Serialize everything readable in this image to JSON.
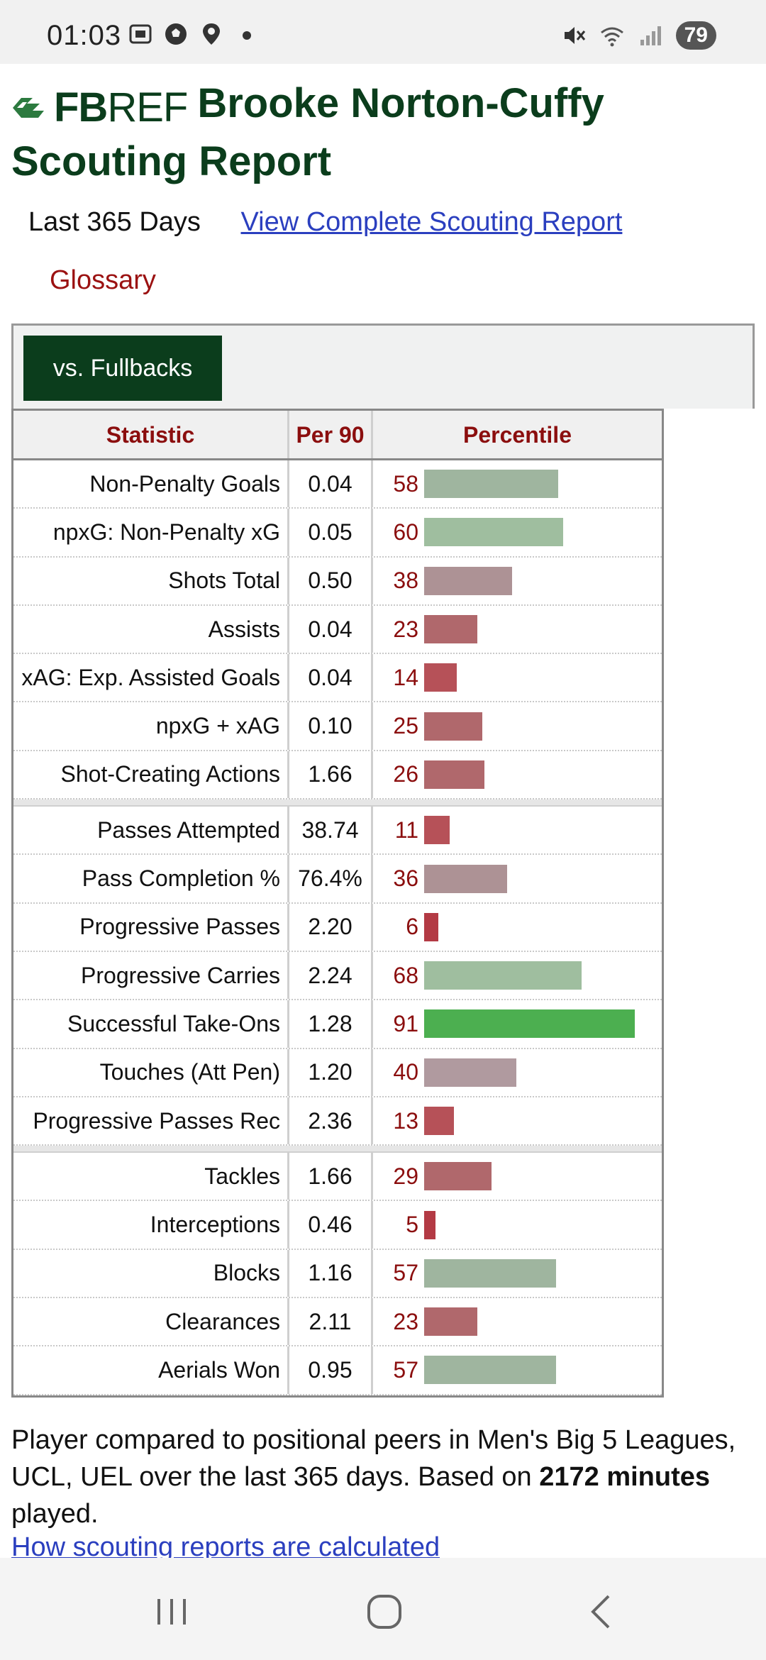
{
  "status_bar": {
    "time": "01:03",
    "battery": "79",
    "left_icons": [
      "screenshot-icon",
      "soccer-ball-icon",
      "location-icon",
      "dot-icon"
    ],
    "right_icons": [
      "mute-icon",
      "wifi-icon",
      "signal-icon"
    ]
  },
  "header": {
    "logo_fb": "FB",
    "logo_ref": "REF",
    "title_line1": "Brooke Norton-Cuffy",
    "title_line2": "Scouting Report"
  },
  "links": {
    "period": "Last 365 Days",
    "view_complete": "View Complete Scouting Report",
    "glossary": "Glossary"
  },
  "filter": {
    "button": "vs. Fullbacks"
  },
  "table": {
    "headers": {
      "statistic": "Statistic",
      "per90": "Per 90",
      "percentile": "Percentile"
    },
    "groups": [
      [
        {
          "stat": "Non-Penalty Goals",
          "per90": "0.04",
          "pct": 58
        },
        {
          "stat": "npxG: Non-Penalty xG",
          "per90": "0.05",
          "pct": 60
        },
        {
          "stat": "Shots Total",
          "per90": "0.50",
          "pct": 38
        },
        {
          "stat": "Assists",
          "per90": "0.04",
          "pct": 23
        },
        {
          "stat": "xAG: Exp. Assisted Goals",
          "per90": "0.04",
          "pct": 14
        },
        {
          "stat": "npxG + xAG",
          "per90": "0.10",
          "pct": 25
        },
        {
          "stat": "Shot-Creating Actions",
          "per90": "1.66",
          "pct": 26
        }
      ],
      [
        {
          "stat": "Passes Attempted",
          "per90": "38.74",
          "pct": 11
        },
        {
          "stat": "Pass Completion %",
          "per90": "76.4%",
          "pct": 36
        },
        {
          "stat": "Progressive Passes",
          "per90": "2.20",
          "pct": 6
        },
        {
          "stat": "Progressive Carries",
          "per90": "2.24",
          "pct": 68
        },
        {
          "stat": "Successful Take-Ons",
          "per90": "1.28",
          "pct": 91
        },
        {
          "stat": "Touches (Att Pen)",
          "per90": "1.20",
          "pct": 40
        },
        {
          "stat": "Progressive Passes Rec",
          "per90": "2.36",
          "pct": 13
        }
      ],
      [
        {
          "stat": "Tackles",
          "per90": "1.66",
          "pct": 29
        },
        {
          "stat": "Interceptions",
          "per90": "0.46",
          "pct": 5
        },
        {
          "stat": "Blocks",
          "per90": "1.16",
          "pct": 57
        },
        {
          "stat": "Clearances",
          "per90": "2.11",
          "pct": 23
        },
        {
          "stat": "Aerials Won",
          "per90": "0.95",
          "pct": 57
        }
      ]
    ]
  },
  "note": {
    "text_before": "Player compared to positional peers in Men's Big 5 Leagues, UCL, UEL over the last 365 days. Based on ",
    "minutes": "2172 minutes",
    "text_after": " played.",
    "calc_link": "How scouting reports are calculated"
  },
  "navbar": {
    "items": [
      "recent-apps-icon",
      "home-icon",
      "back-icon"
    ]
  }
}
